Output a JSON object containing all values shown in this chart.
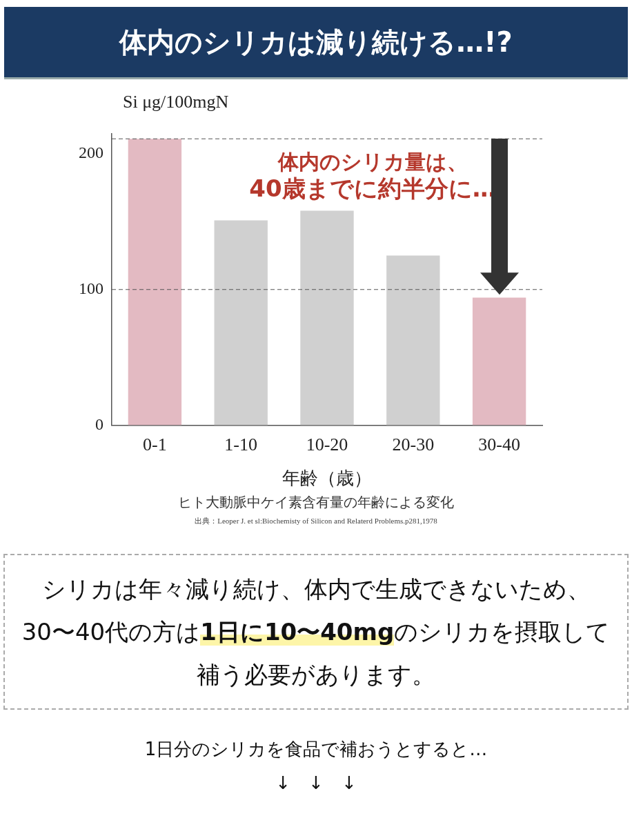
{
  "chart_data": {
    "type": "bar",
    "title": "体内のシリカは減り続ける…!?",
    "xlabel": "年齢（歳）",
    "ylabel": "Si  μg/100mgN",
    "categories": [
      "0-1",
      "1-10",
      "10-20",
      "20-30",
      "30-40"
    ],
    "values": [
      211,
      151,
      158,
      125,
      94
    ],
    "colors": [
      "#e3bac2",
      "#d0d0d0",
      "#d0d0d0",
      "#d0d0d0",
      "#e3bac2"
    ],
    "ylim": [
      0,
      215
    ],
    "yticks": [
      0,
      100,
      200
    ],
    "grid": false,
    "legend": false,
    "ref_lines": [
      {
        "axis": "y",
        "value": 100,
        "line_style": "dashed",
        "color": "#555555"
      },
      {
        "axis": "y",
        "value": 211,
        "line_style": "dashed",
        "color": "#555555"
      }
    ],
    "annotations": [
      "体内のシリカ量は、",
      "40歳までに約半分に…",
      "ヒト大動脈中ケイ素含有量の年齢による変化",
      "出典：Leoper J. et sl:Biochemisty of Silicon and Relaterd Problems.p281,1978",
      "シリカは年々減り続け、体内で生成できないため、30〜40代の方は",
      "1日に10〜40mg",
      "のシリカを摂取して補う必要があります。",
      "1日分のシリカを食品で補おうとすると…",
      "↓　↓　↓"
    ]
  }
}
